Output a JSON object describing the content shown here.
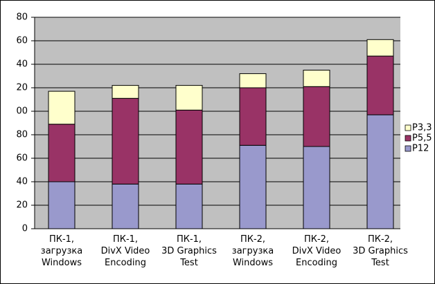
{
  "chart_data": {
    "type": "stacked_bar",
    "categories": [
      "ПК-1,\nзагрузка\nWindows",
      "ПК-1,\nDivX Video\nEncoding",
      "ПК-1,\n3D Graphics\nTest",
      "ПК-2,\nзагрузка\nWindows",
      "ПК-2,\nDivX Video\nEncoding",
      "ПК-2,\n3D Graphics\nTest"
    ],
    "series": [
      {
        "name": "P12",
        "color": "#9999cc",
        "values": [
          40,
          38,
          38,
          71,
          70,
          97
        ]
      },
      {
        "name": "P5,5",
        "color": "#993366",
        "values": [
          49,
          73,
          63,
          49,
          51,
          50
        ]
      },
      {
        "name": "P3,3",
        "color": "#ffffcc",
        "values": [
          28,
          11,
          21,
          12,
          14,
          14
        ]
      }
    ],
    "ylim": [
      0,
      180
    ],
    "yticks": [
      0,
      20,
      40,
      60,
      80,
      {
        "value": 100,
        "label": "00"
      },
      {
        "value": 120,
        "label": "20"
      },
      {
        "value": 140,
        "label": "40"
      },
      {
        "value": 160,
        "label": "60"
      },
      {
        "value": 180,
        "label": "80"
      }
    ],
    "grid": true,
    "legend": "right"
  }
}
